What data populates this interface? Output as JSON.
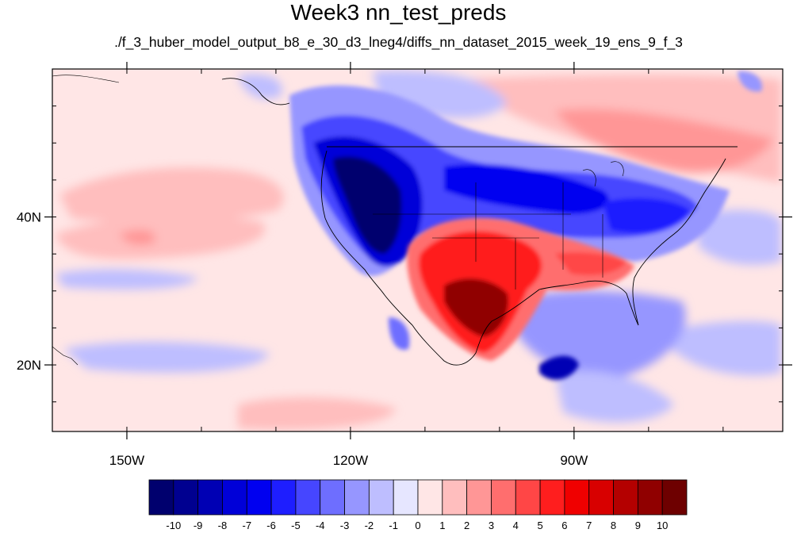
{
  "title": "Week3 nn_test_preds",
  "subtitle": "./f_3_huber_model_output_b8_e_30_d3_lneg4/diffs_nn_dataset_2015_week_19_ens_9_f_3",
  "map": {
    "lon_range": [
      -160,
      -62
    ],
    "lat_range": [
      11,
      60
    ],
    "x_ticks": [
      {
        "lon": -150,
        "label": "150W"
      },
      {
        "lon": -120,
        "label": "120W"
      },
      {
        "lon": -90,
        "label": "90W"
      }
    ],
    "y_ticks": [
      {
        "lat": 40,
        "label": "40N"
      },
      {
        "lat": 20,
        "label": "20N"
      }
    ]
  },
  "colorbar": {
    "labels": [
      "-10",
      "-9",
      "-8",
      "-7",
      "-6",
      "-5",
      "-4",
      "-3",
      "-2",
      "-1",
      "0",
      "1",
      "2",
      "3",
      "4",
      "5",
      "6",
      "7",
      "8",
      "9",
      "10"
    ],
    "colors": [
      "#00006e",
      "#000090",
      "#0000b4",
      "#0000d8",
      "#0000f0",
      "#1e1eff",
      "#4646ff",
      "#6e6eff",
      "#9696ff",
      "#bebeff",
      "#e6e6ff",
      "#ffe6e6",
      "#ffbebe",
      "#ff9696",
      "#ff6e6e",
      "#ff4646",
      "#ff1e1e",
      "#f00000",
      "#d80000",
      "#b40000",
      "#900000",
      "#6e0000"
    ]
  }
}
